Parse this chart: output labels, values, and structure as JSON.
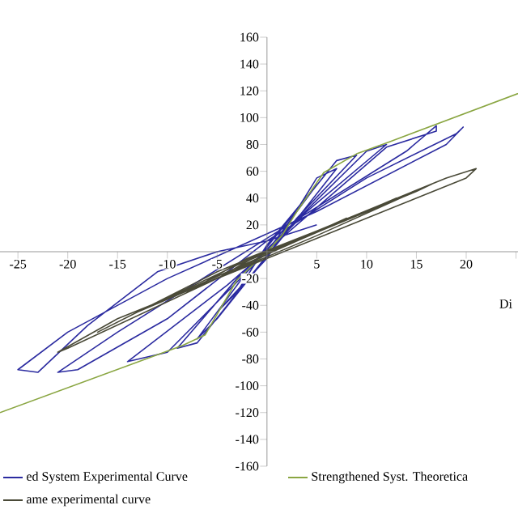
{
  "chart_data": {
    "type": "line",
    "xlabel": "Di",
    "xlim": [
      -26.8,
      25.2
    ],
    "ylim": [
      -160,
      160
    ],
    "xticks": [
      -25,
      -20,
      -15,
      -10,
      -5,
      {
        "value": 0,
        "label": null
      },
      5,
      10,
      15,
      20,
      {
        "value": 25,
        "label": null
      }
    ],
    "yticks": [
      -160,
      -140,
      -120,
      -100,
      -80,
      -60,
      -40,
      -20,
      {
        "value": 0,
        "label": null
      },
      20,
      40,
      60,
      80,
      100,
      120,
      140,
      160
    ],
    "legend": "bottom",
    "series": [
      {
        "name": "ed System Experimental Curve",
        "color": "#2b2ba0",
        "x": [
          0,
          3,
          5,
          0,
          -3,
          -5,
          0,
          5,
          7,
          2,
          -5,
          -7,
          -2,
          7,
          9,
          3,
          -7,
          -9,
          -3,
          10,
          12,
          4,
          -10,
          -14,
          -4,
          12,
          17,
          17,
          14,
          0,
          -15,
          -21,
          -19,
          -10,
          0,
          10,
          19,
          19.7,
          18,
          5,
          -10,
          -20,
          -25,
          -23,
          -18,
          -11,
          -5,
          0,
          5
        ],
        "values": [
          0,
          30,
          50,
          5,
          -30,
          -45,
          -5,
          55,
          62,
          15,
          -50,
          -65,
          -15,
          68,
          72,
          25,
          -68,
          -72,
          -20,
          75,
          80,
          30,
          -75,
          -82,
          -25,
          78,
          90,
          94,
          75,
          10,
          -60,
          -90,
          -88,
          -50,
          8,
          55,
          88,
          93,
          80,
          30,
          -20,
          -60,
          -88,
          -90,
          -55,
          -15,
          0,
          8,
          20
        ]
      },
      {
        "name": "Strengthened Syst. Theoretica",
        "color": "#8aa642",
        "x": [
          -26.8,
          -8.5,
          -6.2,
          -3,
          0,
          1.5,
          3,
          5.7,
          9,
          12.3,
          25.2
        ],
        "values": [
          -120,
          -70,
          -62,
          -21,
          0,
          12,
          30,
          59,
          73,
          82,
          118
        ]
      },
      {
        "name": "ame experimental curve",
        "color": "#4a4a38",
        "x": [
          1,
          5,
          8,
          2,
          -5,
          -8,
          -2,
          10,
          13,
          3,
          -10,
          -13,
          -3,
          15,
          17,
          5,
          -13,
          -17,
          -5,
          18,
          21,
          20,
          5,
          -15,
          -21,
          -20,
          -5,
          -1
        ],
        "values": [
          3,
          15,
          25,
          5,
          -20,
          -30,
          -5,
          30,
          40,
          8,
          -35,
          -45,
          -10,
          45,
          52,
          12,
          -45,
          -60,
          -15,
          55,
          62,
          55,
          10,
          -50,
          -75,
          -72,
          -20,
          -3
        ]
      }
    ]
  }
}
